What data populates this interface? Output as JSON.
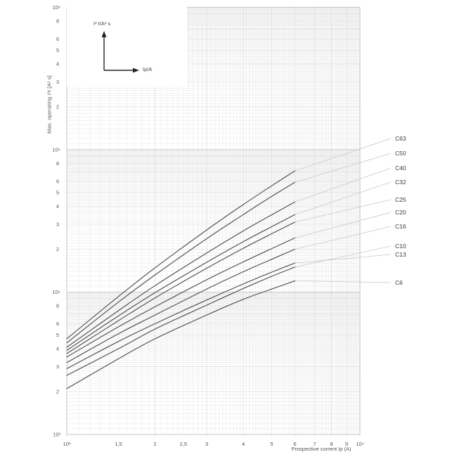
{
  "page": {
    "background": "#ffffff"
  },
  "inset": {
    "y_label": "I² t/A² s",
    "x_label": "Ip/A"
  },
  "chart_data": {
    "type": "line",
    "scale": "log-log",
    "title": "",
    "xlabel": "Prospective current Ip (A)",
    "ylabel": "Max. operating I²t [A² s]",
    "xlim": [
      1000,
      10000
    ],
    "ylim": [
      1000,
      1000000
    ],
    "grid": true,
    "legend_position": "right",
    "x": [
      1000,
      1500,
      2000,
      3000,
      4000,
      5000,
      6000
    ],
    "series": [
      {
        "name": "C63",
        "values": [
          4700,
          9300,
          14800,
          27300,
          41200,
          55800,
          71000
        ]
      },
      {
        "name": "C50",
        "values": [
          4400,
          8500,
          13200,
          23700,
          35000,
          47000,
          59000
        ]
      },
      {
        "name": "C40",
        "values": [
          4100,
          7400,
          11100,
          18800,
          26900,
          34900,
          43000
        ]
      },
      {
        "name": "C32",
        "values": [
          3900,
          6800,
          9900,
          16200,
          22600,
          28800,
          35000
        ]
      },
      {
        "name": "C25",
        "values": [
          3700,
          6300,
          9100,
          14700,
          20300,
          25700,
          31000
        ]
      },
      {
        "name": "C20",
        "values": [
          3500,
          5700,
          7900,
          12200,
          16300,
          20200,
          24000
        ]
      },
      {
        "name": "C16",
        "values": [
          3200,
          5100,
          6900,
          10500,
          13900,
          17000,
          20000
        ]
      },
      {
        "name": "C13",
        "values": [
          2900,
          4500,
          6000,
          8800,
          11400,
          13800,
          16000
        ]
      },
      {
        "name": "C10",
        "values": [
          2600,
          4000,
          5500,
          8100,
          10600,
          12900,
          15000
        ]
      },
      {
        "name": "C6",
        "values": [
          2100,
          3400,
          4700,
          6900,
          8900,
          10500,
          12000
        ]
      }
    ],
    "curve_label_y": {
      "C63": 197,
      "C50": 218,
      "C40": 239,
      "C32": 259,
      "C25": 284,
      "C20": 302,
      "C16": 322,
      "C10": 350,
      "C13": 362,
      "C6": 402
    },
    "x_ticks": [
      {
        "v": 1000,
        "label": "10³"
      },
      {
        "v": 1500,
        "label": "1,5"
      },
      {
        "v": 2000,
        "label": "2"
      },
      {
        "v": 2500,
        "label": "2,5"
      },
      {
        "v": 3000,
        "label": "3"
      },
      {
        "v": 4000,
        "label": "4"
      },
      {
        "v": 5000,
        "label": "5"
      },
      {
        "v": 6000,
        "label": "6"
      },
      {
        "v": 7000,
        "label": "7"
      },
      {
        "v": 8000,
        "label": "8"
      },
      {
        "v": 9000,
        "label": "9"
      },
      {
        "v": 10000,
        "label": "10⁴"
      }
    ],
    "y_decade_ticks": [
      {
        "v": 1000000,
        "label": "10⁶"
      },
      {
        "v": 100000,
        "label": "10⁵"
      },
      {
        "v": 10000,
        "label": "10⁴"
      },
      {
        "v": 1000,
        "label": "10³"
      }
    ],
    "y_minor_labels": [
      8,
      6,
      5,
      4,
      3,
      2
    ],
    "colors": {
      "curve": "#4f4f4f",
      "leader": "#c9c9c9",
      "grid_minor": "#e6e6e6",
      "grid_mid": "#d4d4d4",
      "grid_major": "#b8b8b8",
      "tick_text": "#555555",
      "label_text": "#3a3a3a",
      "arrow": "#222222"
    }
  }
}
